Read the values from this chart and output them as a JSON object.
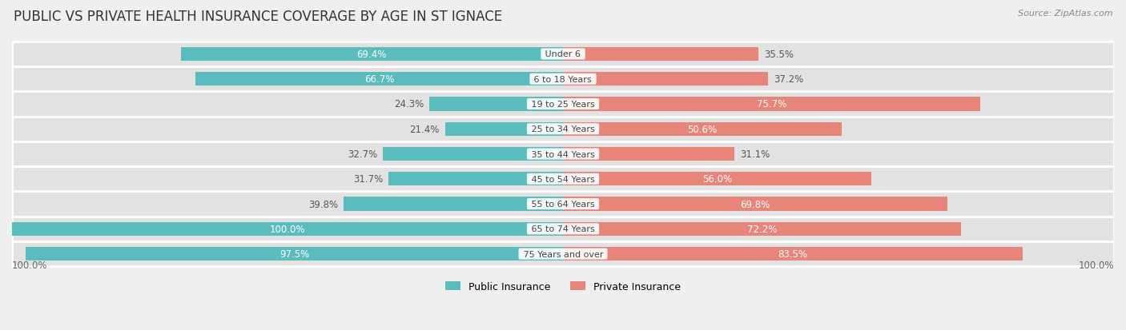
{
  "title": "PUBLIC VS PRIVATE HEALTH INSURANCE COVERAGE BY AGE IN ST IGNACE",
  "source": "Source: ZipAtlas.com",
  "categories": [
    "Under 6",
    "6 to 18 Years",
    "19 to 25 Years",
    "25 to 34 Years",
    "35 to 44 Years",
    "45 to 54 Years",
    "55 to 64 Years",
    "65 to 74 Years",
    "75 Years and over"
  ],
  "public": [
    69.4,
    66.7,
    24.3,
    21.4,
    32.7,
    31.7,
    39.8,
    100.0,
    97.5
  ],
  "private": [
    35.5,
    37.2,
    75.7,
    50.6,
    31.1,
    56.0,
    69.8,
    72.2,
    83.5
  ],
  "public_color": "#5bbcbe",
  "private_color": "#e8857a",
  "bg_color": "#efefef",
  "row_bg_color": "#e2e2e2",
  "max_value": 100.0,
  "bar_height": 0.55,
  "title_fontsize": 12,
  "label_fontsize": 8.5,
  "category_fontsize": 8.0,
  "legend_fontsize": 9,
  "source_fontsize": 8
}
